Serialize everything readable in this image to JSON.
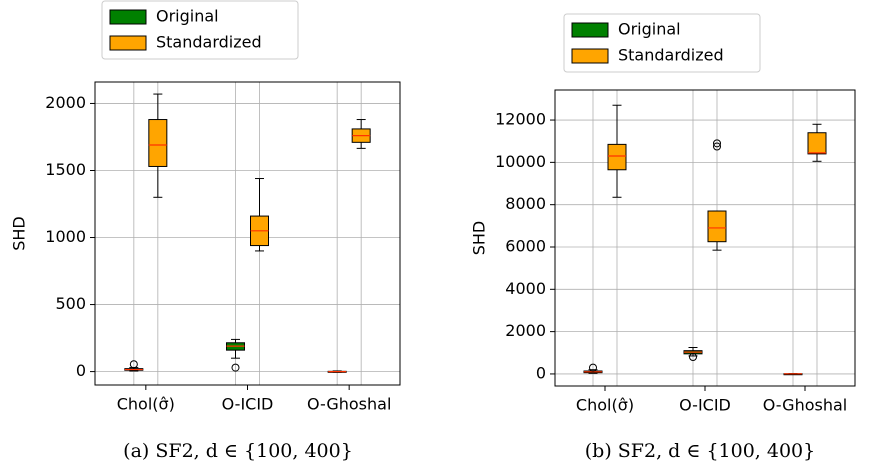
{
  "chart_data": [
    {
      "type": "box",
      "caption": "(a) SF2, d ∈ {100, 400}",
      "ylabel": "SHD",
      "categories": [
        "Chol(σ̂)",
        "O-ICID",
        "O-Ghoshal"
      ],
      "series": [
        {
          "name": "Original",
          "color": "#008000",
          "values": [
            {
              "low": 5,
              "q1": 10,
              "median": 15,
              "q3": 22,
              "high": 30,
              "outliers": [
                55
              ]
            },
            {
              "low": 100,
              "q1": 160,
              "median": 190,
              "q3": 215,
              "high": 240,
              "outliers": [
                30
              ]
            },
            {
              "low": -5,
              "q1": -2,
              "median": 0,
              "q3": 2,
              "high": 5,
              "outliers": []
            }
          ]
        },
        {
          "name": "Standardized",
          "color": "#ffa500",
          "values": [
            {
              "low": 1300,
              "q1": 1530,
              "median": 1690,
              "q3": 1880,
              "high": 2070,
              "outliers": []
            },
            {
              "low": 900,
              "q1": 940,
              "median": 1050,
              "q3": 1160,
              "high": 1440,
              "outliers": []
            },
            {
              "low": 1665,
              "q1": 1710,
              "median": 1760,
              "q3": 1810,
              "high": 1880,
              "outliers": []
            }
          ]
        }
      ],
      "ylim": [
        -100,
        2160
      ],
      "yticks": [
        0,
        500,
        1000,
        1500,
        2000
      ],
      "grid": true
    },
    {
      "type": "box",
      "caption": "(b) SF2, d ∈ {100, 400}",
      "ylabel": "SHD",
      "categories": [
        "Chol(σ̂)",
        "O-ICID",
        "O-Ghoshal"
      ],
      "series": [
        {
          "name": "Original",
          "color": "#008000",
          "values": [
            {
              "low": 30,
              "q1": 60,
              "median": 100,
              "q3": 140,
              "high": 200,
              "outliers": [
                300
              ]
            },
            {
              "low": 850,
              "q1": 950,
              "median": 1030,
              "q3": 1100,
              "high": 1250,
              "outliers": [
                800
              ]
            },
            {
              "low": -10,
              "q1": 0,
              "median": 5,
              "q3": 10,
              "high": 20,
              "outliers": []
            }
          ]
        },
        {
          "name": "Standardized",
          "color": "#ffa500",
          "values": [
            {
              "low": 8350,
              "q1": 9650,
              "median": 10300,
              "q3": 10850,
              "high": 12700,
              "outliers": []
            },
            {
              "low": 5850,
              "q1": 6250,
              "median": 6900,
              "q3": 7700,
              "high": 7700,
              "outliers": [
                10750,
                10900
              ]
            },
            {
              "low": 10050,
              "q1": 10400,
              "median": 10450,
              "q3": 11400,
              "high": 11800,
              "outliers": []
            }
          ]
        }
      ],
      "ylim": [
        -570,
        13420
      ],
      "yticks": [
        0,
        2000,
        4000,
        6000,
        8000,
        10000,
        12000
      ],
      "grid": true
    }
  ]
}
